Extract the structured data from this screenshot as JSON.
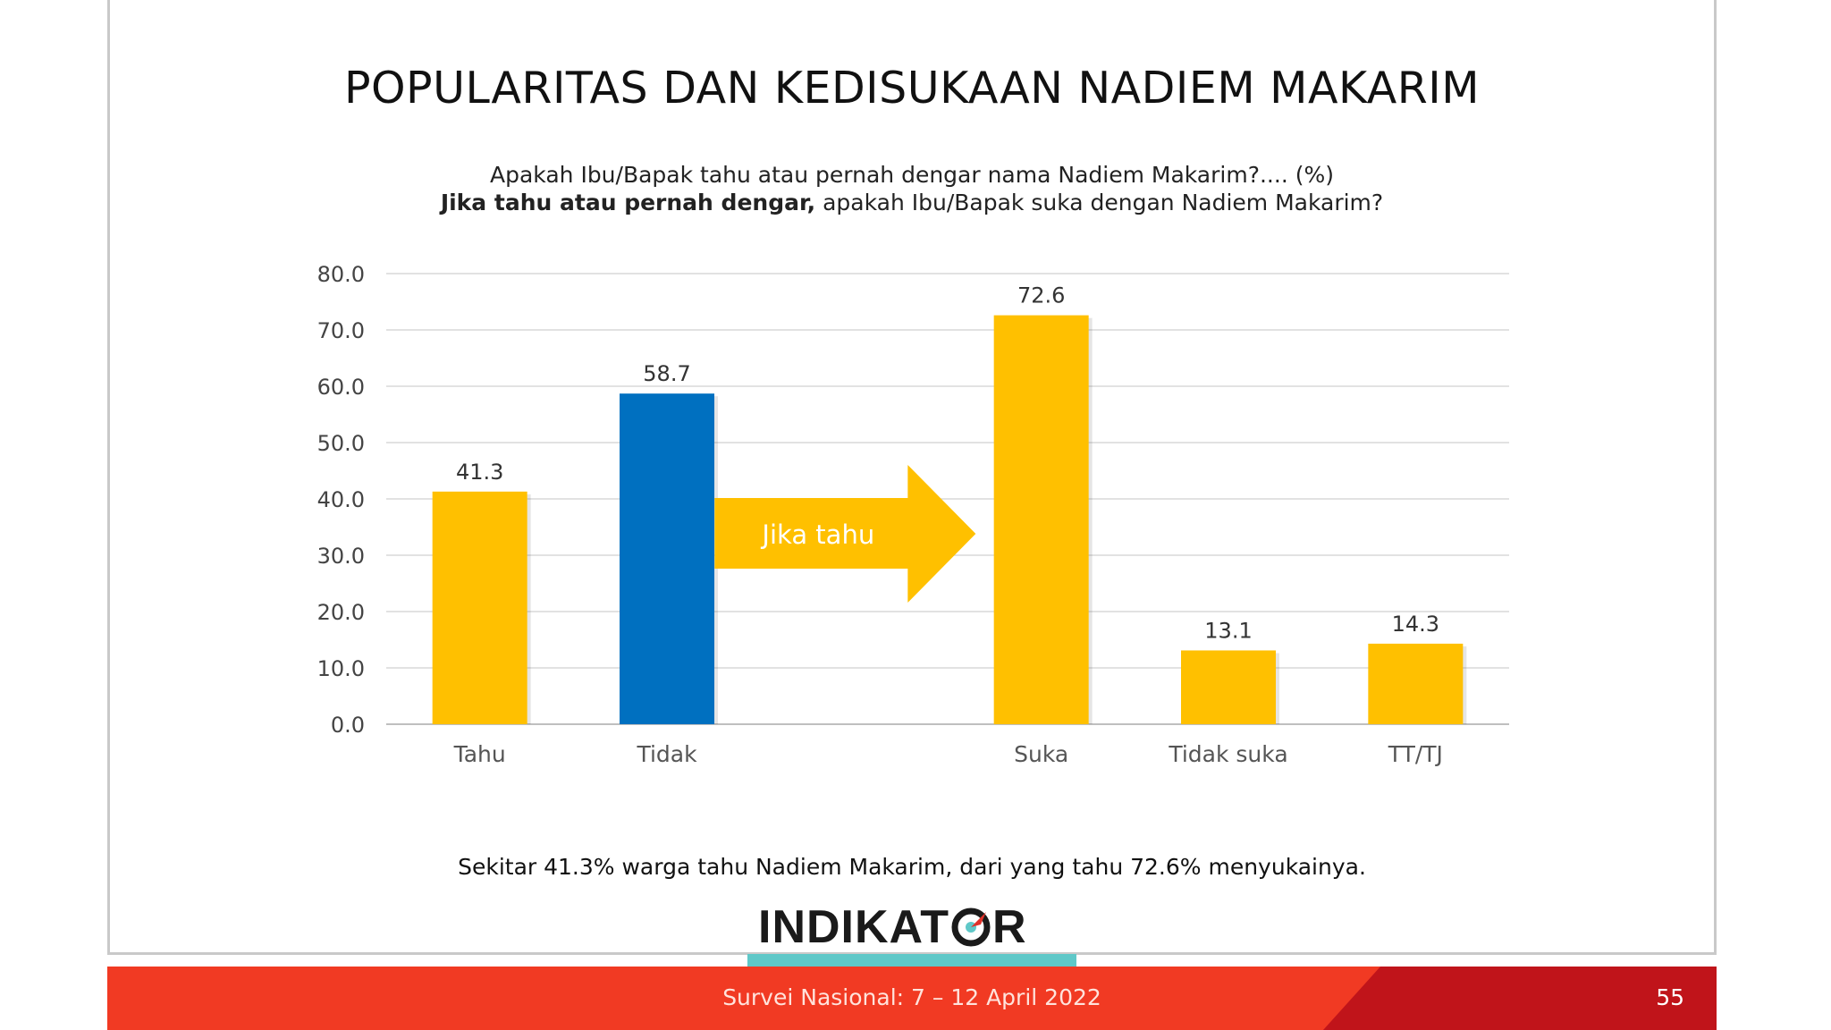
{
  "slide": {
    "title": "POPULARITAS DAN KEDISUKAAN NADIEM MAKARIM",
    "question_line1": "Apakah Ibu/Bapak tahu atau pernah dengar nama Nadiem Makarim?.... (%)",
    "question_line2_bold": "Jika tahu atau pernah dengar,",
    "question_line2_rest": " apakah Ibu/Bapak suka dengan Nadiem Makarim?",
    "caption": "Sekitar 41.3% warga tahu Nadiem Makarim, dari yang tahu 72.6% menyukainya.",
    "arrow_label": "Jika tahu",
    "footer_text": "Survei Nasional: 7 – 12 April 2022",
    "page_number": "55",
    "logo_text": "INDIKATOR",
    "colors": {
      "yellow": "#FFC000",
      "blue": "#0070C0",
      "footer_red": "#F13A23",
      "footer_dark": "#C0141A",
      "teal": "#5FC8C8"
    }
  },
  "chart_data": {
    "type": "bar",
    "categories": [
      "Tahu",
      "Tidak",
      "",
      "Suka",
      "Tidak suka",
      "TT/TJ"
    ],
    "values": [
      41.3,
      58.7,
      null,
      72.6,
      13.1,
      14.3
    ],
    "value_labels": [
      "41.3",
      "58.7",
      "",
      "72.6",
      "13.1",
      "14.3"
    ],
    "bar_colors": [
      "#FFC000",
      "#0070C0",
      null,
      "#FFC000",
      "#FFC000",
      "#FFC000"
    ],
    "ylim": [
      0,
      80
    ],
    "yticks": [
      "0.0",
      "10.0",
      "20.0",
      "30.0",
      "40.0",
      "50.0",
      "60.0",
      "70.0",
      "80.0"
    ],
    "grid": true,
    "legend": "none"
  }
}
